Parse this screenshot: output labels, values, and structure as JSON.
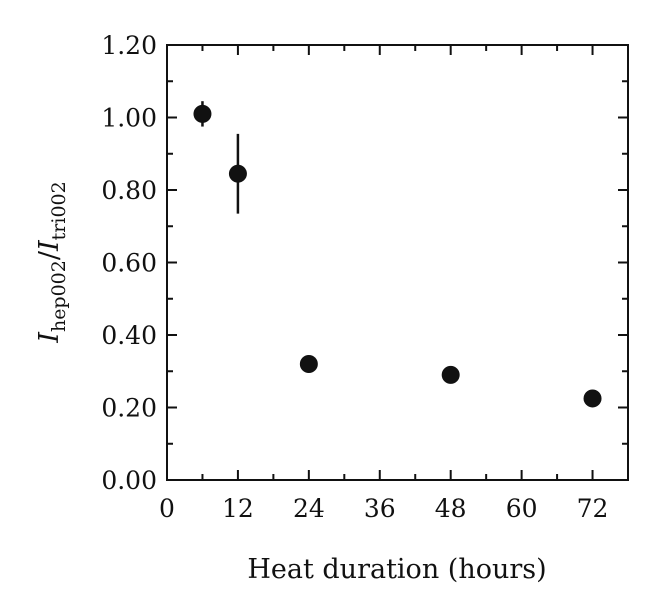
{
  "chart_data": {
    "type": "scatter",
    "title": "",
    "xlabel": "Heat duration (hours)",
    "ylabel": {
      "main1": "I",
      "sub1": "hep002",
      "slash": "/",
      "main2": "I",
      "sub2": "tri002"
    },
    "xlim": [
      0,
      78
    ],
    "ylim": [
      0,
      1.2
    ],
    "x_ticks": [
      0,
      12,
      24,
      36,
      48,
      60,
      72
    ],
    "x_minor_ticks": [
      6,
      18,
      30,
      42,
      54,
      66
    ],
    "y_ticks": [
      0,
      0.2,
      0.4,
      0.6,
      0.8,
      1.0,
      1.2
    ],
    "y_tick_labels": [
      "0.00",
      "0.20",
      "0.40",
      "0.60",
      "0.80",
      "1.00",
      "1.20"
    ],
    "y_minor_ticks": [
      0.1,
      0.3,
      0.5,
      0.7,
      0.9,
      1.1
    ],
    "x_tick_labels": [
      "0",
      "12",
      "24",
      "36",
      "48",
      "60",
      "72"
    ],
    "grid": false,
    "points": [
      {
        "x": 6,
        "y": 1.01,
        "err": 0.035
      },
      {
        "x": 12,
        "y": 0.845,
        "err": 0.11
      },
      {
        "x": 24,
        "y": 0.32,
        "err": 0
      },
      {
        "x": 48,
        "y": 0.29,
        "err": 0
      },
      {
        "x": 72,
        "y": 0.225,
        "err": 0
      }
    ]
  }
}
